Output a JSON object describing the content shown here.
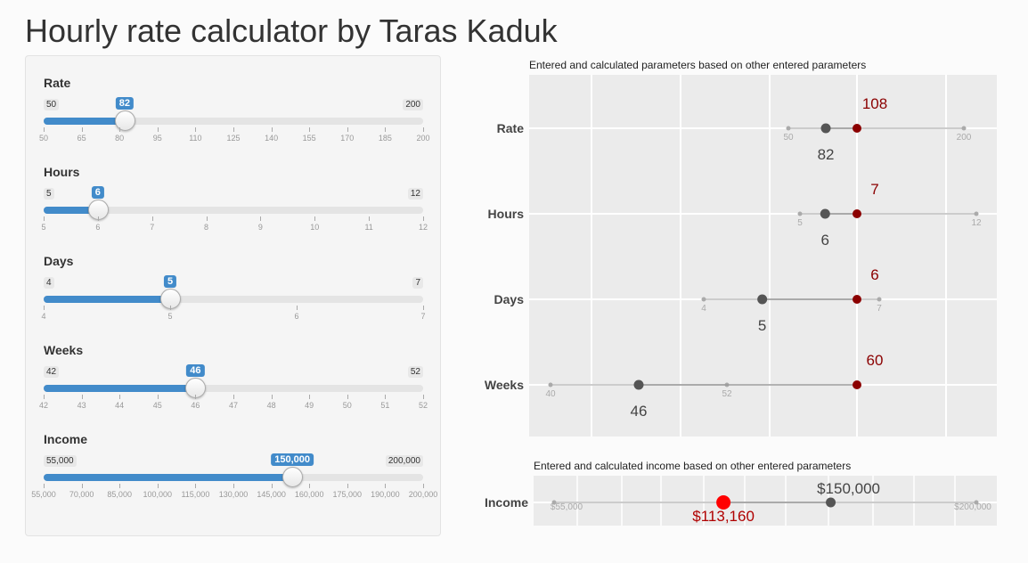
{
  "title": "Hourly rate calculator by Taras Kaduk",
  "sliders": [
    {
      "label": "Rate",
      "min": 50,
      "max": 200,
      "value": 82,
      "min_label": "50",
      "max_label": "200",
      "value_label": "82",
      "ticks": [
        "50",
        "65",
        "80",
        "95",
        "110",
        "125",
        "140",
        "155",
        "170",
        "185",
        "200"
      ]
    },
    {
      "label": "Hours",
      "min": 5,
      "max": 12,
      "value": 6,
      "min_label": "5",
      "max_label": "12",
      "value_label": "6",
      "ticks": [
        "5",
        "6",
        "7",
        "8",
        "9",
        "10",
        "11",
        "12"
      ]
    },
    {
      "label": "Days",
      "min": 4,
      "max": 7,
      "value": 5,
      "min_label": "4",
      "max_label": "7",
      "value_label": "5",
      "ticks": [
        "4",
        "5",
        "6",
        "7"
      ]
    },
    {
      "label": "Weeks",
      "min": 42,
      "max": 52,
      "value": 46,
      "min_label": "42",
      "max_label": "52",
      "value_label": "46",
      "ticks": [
        "42",
        "43",
        "44",
        "45",
        "46",
        "47",
        "48",
        "49",
        "50",
        "51",
        "52"
      ]
    },
    {
      "label": "Income",
      "min": 55000,
      "max": 200000,
      "value": 150000,
      "min_label": "55,000",
      "max_label": "200,000",
      "value_label": "150,000",
      "ticks": [
        "55,000",
        "70,000",
        "85,000",
        "100,000",
        "115,000",
        "130,000",
        "145,000",
        "160,000",
        "175,000",
        "190,000",
        "200,000"
      ]
    }
  ],
  "colors": {
    "accent": "#428bca",
    "calculated": "#8b0000",
    "entered": "#555555",
    "income_calc": "#ff0000"
  },
  "chart_data": [
    {
      "type": "scatter",
      "title": "Entered and calculated parameters based on other entered parameters",
      "categories": [
        "Rate",
        "Hours",
        "Days",
        "Weeks"
      ],
      "rows": [
        {
          "name": "Rate",
          "min": 50,
          "max": 200,
          "min_label": "50",
          "max_label": "200",
          "entered": 82,
          "entered_label": "82",
          "calculated_label": "108"
        },
        {
          "name": "Hours",
          "min": 5,
          "max": 12,
          "min_label": "5",
          "max_label": "12",
          "entered": 6,
          "entered_label": "6",
          "calculated_label": "7"
        },
        {
          "name": "Days",
          "min": 4,
          "max": 7,
          "min_label": "4",
          "max_label": "7",
          "entered": 5,
          "entered_label": "5",
          "calculated_label": "6"
        },
        {
          "name": "Weeks",
          "min": 40,
          "max": 52,
          "min_label": "40",
          "max_label": "52",
          "entered": 46,
          "entered_label": "46",
          "calculated_label": "60"
        }
      ],
      "grid": true
    },
    {
      "type": "scatter",
      "title": "Entered and calculated income based on other entered parameters",
      "categories": [
        "Income"
      ],
      "rows": [
        {
          "name": "Income",
          "min": 55000,
          "max": 200000,
          "min_label": "$55,000",
          "max_label": "$200,000",
          "entered": 150000,
          "entered_label": "$150,000",
          "calculated": 113160,
          "calculated_label": "$113,160"
        }
      ],
      "grid": true
    }
  ]
}
